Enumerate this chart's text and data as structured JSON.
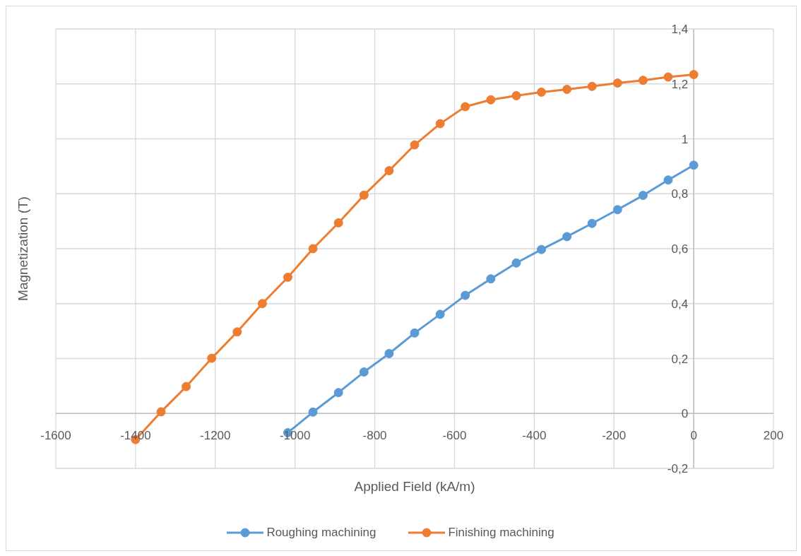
{
  "chart_data": {
    "type": "line",
    "xlabel": "Applied Field (kA/m)",
    "ylabel": "Magnetization (T)",
    "series": [
      {
        "name": "Roughing machining",
        "color": "#5b9bd5",
        "x": [
          -1018,
          -955,
          -891,
          -827,
          -764,
          -700,
          -636,
          -573,
          -509,
          -445,
          -382,
          -318,
          -255,
          -191,
          -127,
          -64,
          0
        ],
        "values": [
          -0.07,
          0.005,
          0.076,
          0.151,
          0.218,
          0.293,
          0.361,
          0.43,
          0.49,
          0.548,
          0.597,
          0.644,
          0.692,
          0.742,
          0.794,
          0.85,
          0.904
        ]
      },
      {
        "name": "Finishing machining",
        "color": "#ed7d31",
        "x": [
          -1400,
          -1336,
          -1273,
          -1209,
          -1145,
          -1082,
          -1018,
          -955,
          -891,
          -827,
          -764,
          -700,
          -636,
          -573,
          -509,
          -445,
          -382,
          -318,
          -255,
          -191,
          -127,
          -64,
          0
        ],
        "values": [
          -0.095,
          0.006,
          0.098,
          0.201,
          0.297,
          0.4,
          0.496,
          0.6,
          0.694,
          0.795,
          0.884,
          0.978,
          1.055,
          1.117,
          1.142,
          1.157,
          1.17,
          1.18,
          1.191,
          1.203,
          1.213,
          1.225,
          1.234
        ]
      }
    ],
    "xlim": [
      -1600,
      200
    ],
    "xticks": [
      -1600,
      -1400,
      -1200,
      -1000,
      -800,
      -600,
      -400,
      -200,
      0,
      200
    ],
    "ylim": [
      -0.2,
      1.4
    ],
    "yticks": [
      {
        "value": -0.2,
        "label": "-0,2"
      },
      0,
      {
        "value": 0.2,
        "label": "0,2"
      },
      {
        "value": 0.4,
        "label": "0,4"
      },
      {
        "value": 0.6,
        "label": "0,6"
      },
      {
        "value": 0.8,
        "label": "0,8"
      },
      1,
      {
        "value": 1.2,
        "label": "1,2"
      },
      {
        "value": 1.4,
        "label": "1,4"
      }
    ],
    "grid": true,
    "legend": "bottom",
    "marker": "circle",
    "line_style": "solid"
  }
}
